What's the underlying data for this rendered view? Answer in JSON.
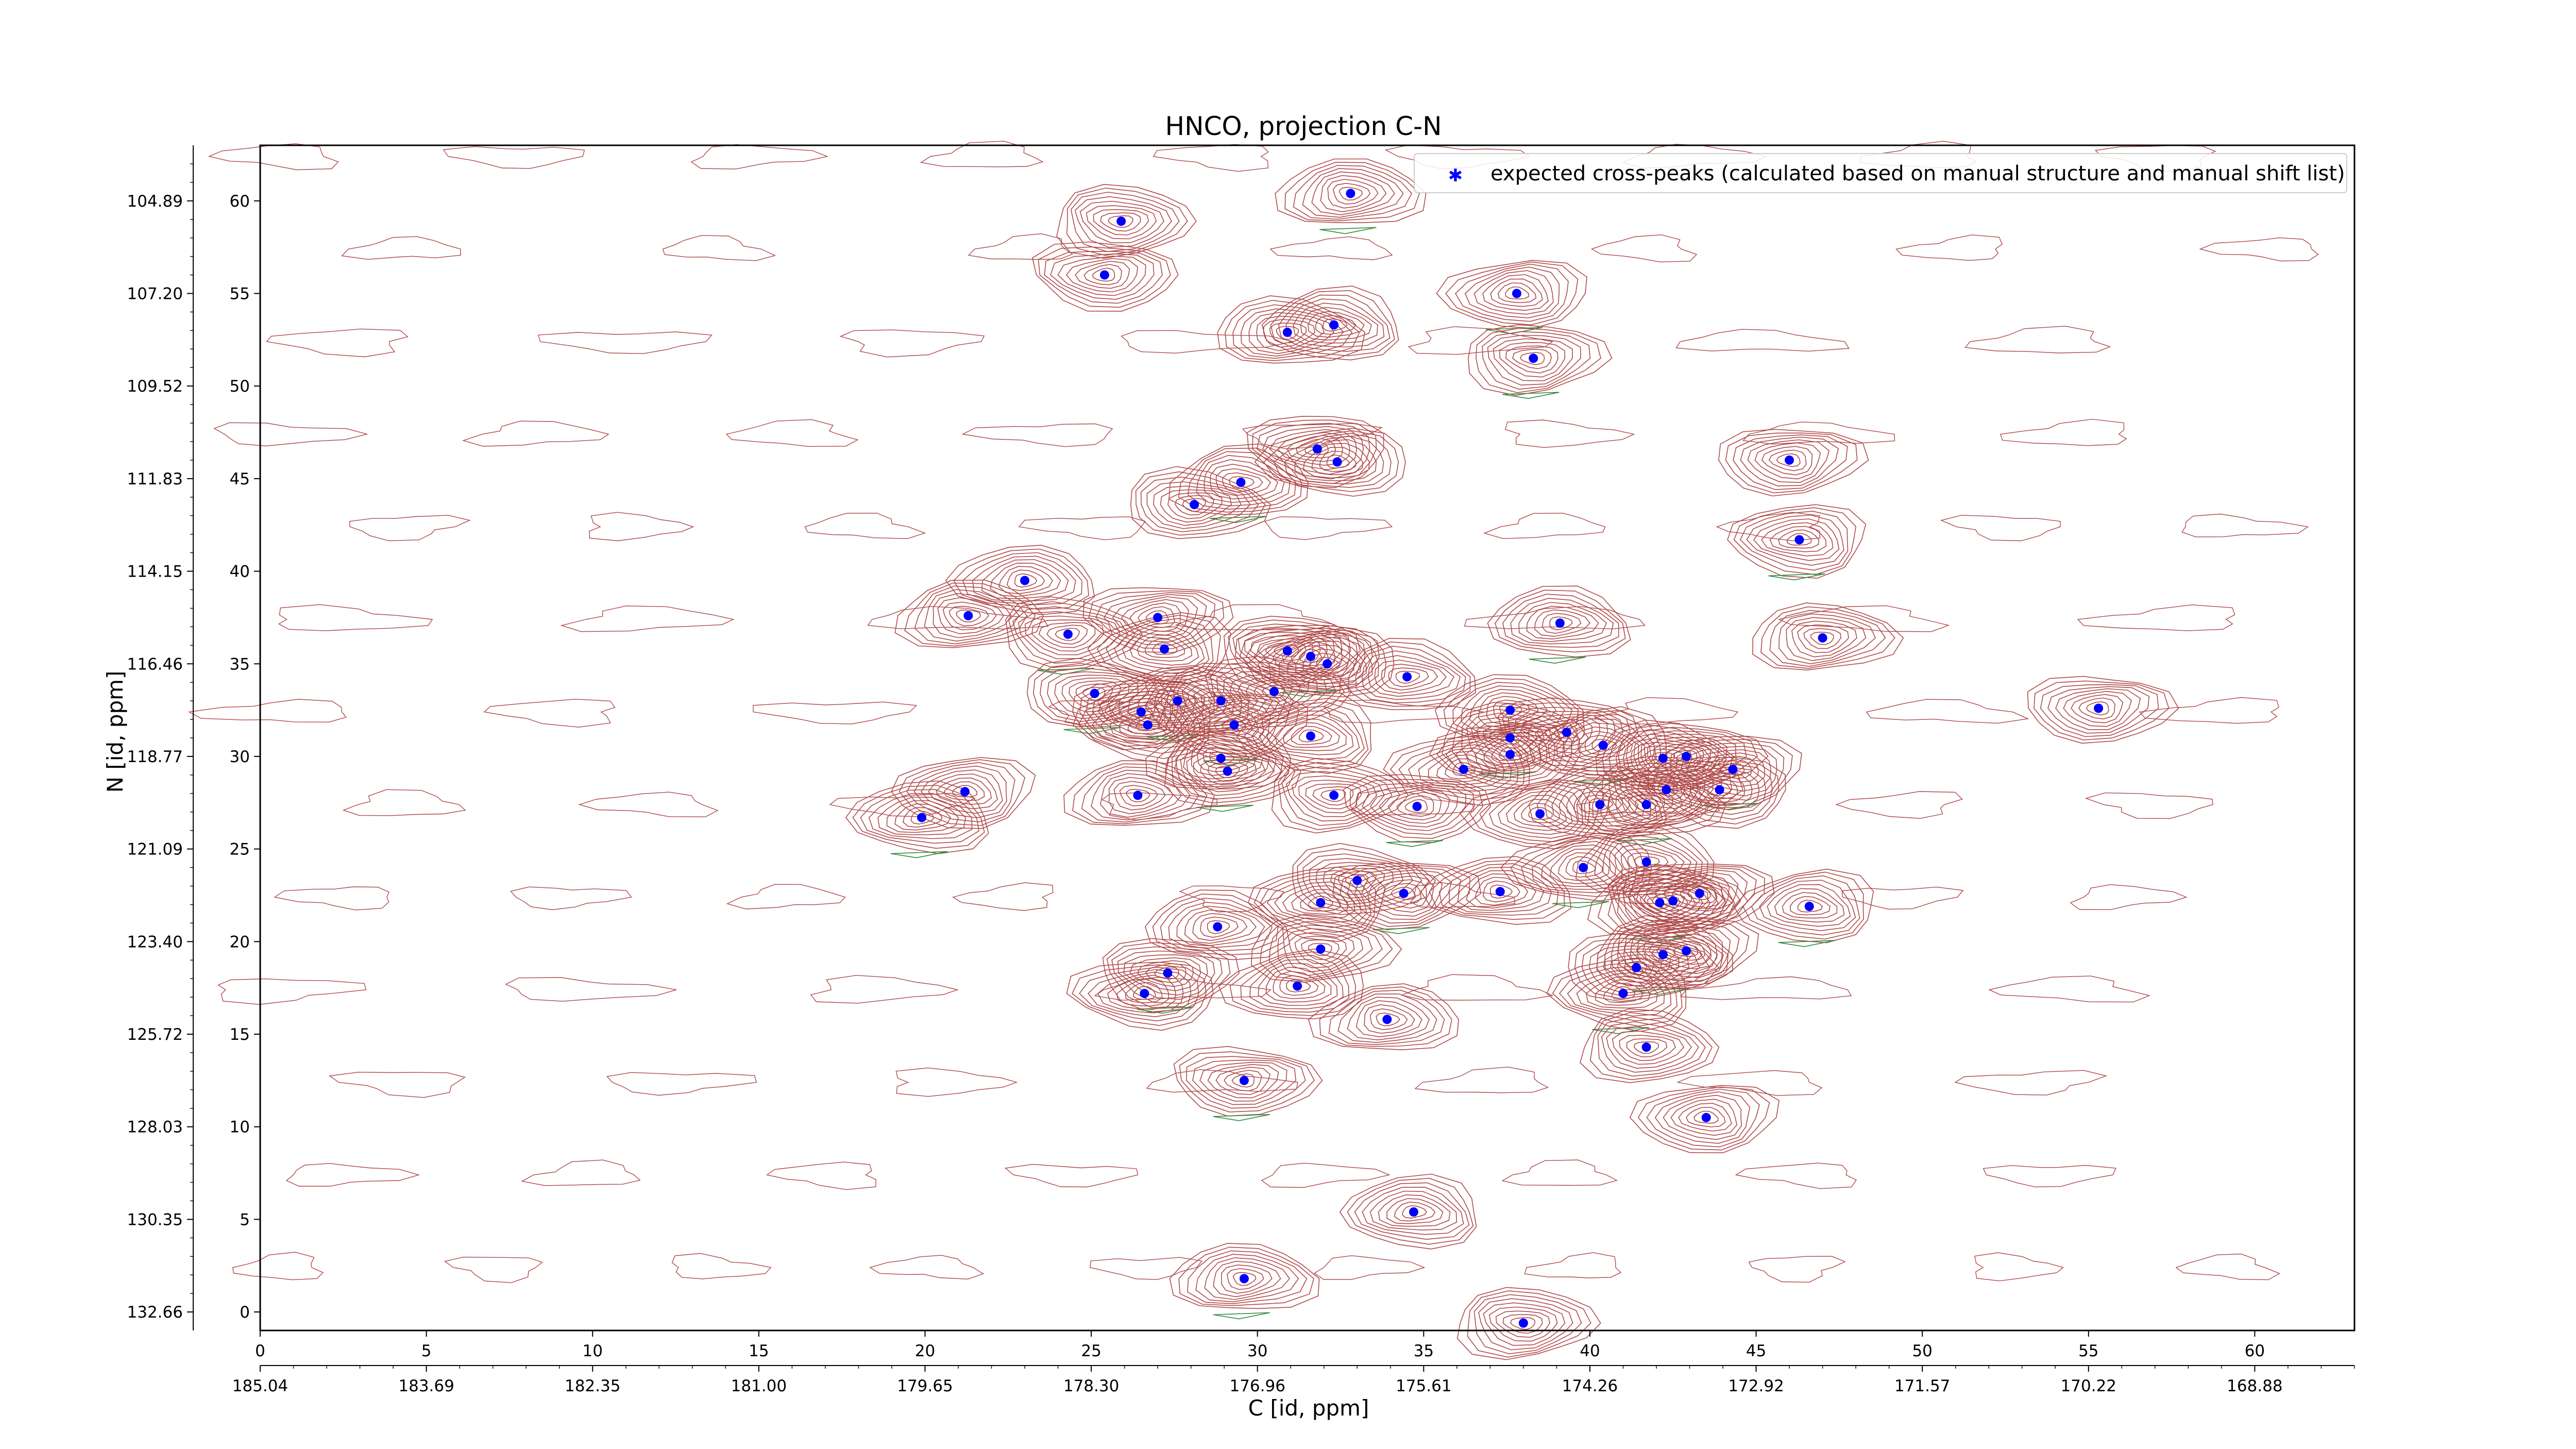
{
  "chart_data": {
    "type": "scatter",
    "title": "HNCO, projection C-N",
    "xlabel": "C [id, ppm]",
    "ylabel": "N [id, ppm]",
    "xlim": [
      0,
      63
    ],
    "ylim": [
      -1,
      63
    ],
    "x_ticks": [
      0,
      5,
      10,
      15,
      20,
      25,
      30,
      35,
      40,
      45,
      50,
      55,
      60
    ],
    "y_ticks": [
      0,
      5,
      10,
      15,
      20,
      25,
      30,
      35,
      40,
      45,
      50,
      55,
      60
    ],
    "x_ppm_ticks": [
      "185.04",
      "183.69",
      "182.35",
      "181.00",
      "179.65",
      "178.30",
      "176.96",
      "175.61",
      "174.26",
      "172.92",
      "171.57",
      "170.22",
      "168.88"
    ],
    "y_ppm_ticks": [
      "132.66",
      "130.35",
      "128.03",
      "125.72",
      "123.40",
      "121.09",
      "118.77",
      "116.46",
      "114.15",
      "111.83",
      "109.52",
      "107.20",
      "104.89"
    ],
    "grid": false,
    "legend": {
      "position": "top-right",
      "label": "expected cross-peaks (calculated based on manual structure and manual shift list)"
    },
    "colors": {
      "contour_positive": "#b04a4a",
      "contour_negative": "#2e8b3e",
      "peaks": "#0000ff"
    },
    "series": [
      {
        "name": "expected cross-peaks (calculated based on manual structure and manual shift list)",
        "points": [
          [
            32.8,
            60.4
          ],
          [
            25.9,
            58.9
          ],
          [
            25.4,
            56.0
          ],
          [
            37.8,
            55.0
          ],
          [
            32.3,
            53.3
          ],
          [
            30.9,
            52.9
          ],
          [
            38.3,
            51.5
          ],
          [
            31.8,
            46.6
          ],
          [
            32.4,
            45.9
          ],
          [
            29.5,
            44.8
          ],
          [
            28.1,
            43.6
          ],
          [
            46.0,
            46.0
          ],
          [
            46.3,
            41.7
          ],
          [
            23.0,
            39.5
          ],
          [
            21.3,
            37.6
          ],
          [
            24.3,
            36.6
          ],
          [
            27.0,
            37.5
          ],
          [
            27.2,
            35.8
          ],
          [
            39.1,
            37.2
          ],
          [
            47.0,
            36.4
          ],
          [
            30.9,
            35.7
          ],
          [
            31.6,
            35.4
          ],
          [
            32.1,
            35.0
          ],
          [
            34.5,
            34.3
          ],
          [
            25.1,
            33.4
          ],
          [
            26.5,
            32.4
          ],
          [
            26.7,
            31.7
          ],
          [
            27.6,
            33.0
          ],
          [
            28.9,
            33.0
          ],
          [
            30.5,
            33.5
          ],
          [
            29.3,
            31.7
          ],
          [
            31.6,
            31.1
          ],
          [
            37.6,
            32.5
          ],
          [
            37.6,
            31.0
          ],
          [
            39.3,
            31.3
          ],
          [
            37.6,
            30.1
          ],
          [
            40.4,
            30.6
          ],
          [
            42.2,
            29.9
          ],
          [
            42.9,
            30.0
          ],
          [
            44.3,
            29.3
          ],
          [
            36.2,
            29.3
          ],
          [
            28.9,
            29.9
          ],
          [
            29.1,
            29.2
          ],
          [
            55.3,
            32.6
          ],
          [
            21.2,
            28.1
          ],
          [
            19.9,
            26.7
          ],
          [
            26.4,
            27.9
          ],
          [
            32.3,
            27.9
          ],
          [
            34.8,
            27.3
          ],
          [
            38.5,
            26.9
          ],
          [
            40.3,
            27.4
          ],
          [
            41.7,
            27.4
          ],
          [
            42.3,
            28.2
          ],
          [
            43.9,
            28.2
          ],
          [
            39.8,
            24.0
          ],
          [
            41.7,
            24.3
          ],
          [
            33.0,
            23.3
          ],
          [
            34.4,
            22.6
          ],
          [
            31.9,
            22.1
          ],
          [
            37.3,
            22.7
          ],
          [
            42.1,
            22.1
          ],
          [
            42.5,
            22.2
          ],
          [
            43.3,
            22.6
          ],
          [
            46.6,
            21.9
          ],
          [
            28.8,
            20.8
          ],
          [
            31.9,
            19.6
          ],
          [
            27.3,
            18.3
          ],
          [
            26.6,
            17.2
          ],
          [
            31.2,
            17.6
          ],
          [
            42.2,
            19.3
          ],
          [
            41.4,
            18.6
          ],
          [
            42.9,
            19.5
          ],
          [
            41.0,
            17.2
          ],
          [
            33.9,
            15.8
          ],
          [
            41.7,
            14.3
          ],
          [
            29.6,
            12.5
          ],
          [
            43.5,
            10.5
          ],
          [
            34.7,
            5.4
          ],
          [
            29.6,
            1.8
          ],
          [
            38.0,
            -0.6
          ]
        ]
      }
    ]
  }
}
